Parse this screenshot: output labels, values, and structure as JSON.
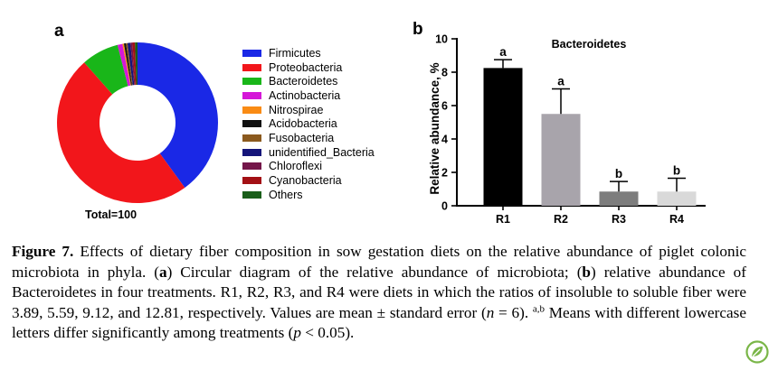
{
  "panel_labels": {
    "a": "a",
    "b": "b"
  },
  "chart_data": [
    {
      "type": "pie",
      "subtype": "donut",
      "total_label": "Total=100",
      "series": [
        {
          "name": "Firmicutes",
          "value": 40.0,
          "color": "#1a28e6"
        },
        {
          "name": "Proteobacteria",
          "value": 48.5,
          "color": "#f2161b"
        },
        {
          "name": "Bacteroidetes",
          "value": 7.5,
          "color": "#19b619"
        },
        {
          "name": "Actinobacteria",
          "value": 1.0,
          "color": "#d517d8"
        },
        {
          "name": "Nitrospirae",
          "value": 0.3,
          "color": "#f98b14"
        },
        {
          "name": "Acidobacteria",
          "value": 0.4,
          "color": "#111111"
        },
        {
          "name": "Fusobacteria",
          "value": 0.3,
          "color": "#8b5a1e"
        },
        {
          "name": "unidentified_Bacteria",
          "value": 0.6,
          "color": "#15157a"
        },
        {
          "name": "Chloroflexi",
          "value": 0.4,
          "color": "#74164a"
        },
        {
          "name": "Cyanobacteria",
          "value": 0.5,
          "color": "#a31015"
        },
        {
          "name": "Others",
          "value": 0.5,
          "color": "#1a5e1a"
        }
      ]
    },
    {
      "type": "bar",
      "title": "Bacteroidetes",
      "ylabel": "Relative abundance, %",
      "ylim": [
        0,
        10
      ],
      "yticks": [
        0,
        2,
        4,
        6,
        8,
        10
      ],
      "categories": [
        "R1",
        "R2",
        "R3",
        "R4"
      ],
      "values": [
        8.25,
        5.5,
        0.85,
        0.85
      ],
      "errors": [
        0.5,
        1.5,
        0.6,
        0.8
      ],
      "significance": [
        "a",
        "a",
        "b",
        "b"
      ],
      "colors": [
        "#000000",
        "#a8a4ab",
        "#7d7d7d",
        "#d9d9d9"
      ]
    }
  ],
  "caption": {
    "label": "Figure 7.",
    "part1": " Effects of dietary fiber composition in sow gestation diets on the relative abundance of piglet colonic microbiota in phyla. (",
    "a": "a",
    "part2": ") Circular diagram of the relative abundance of microbiota; (",
    "b": "b",
    "part3": ") relative abundance of Bacteroidetes in four treatments. R1, R2, R3, and R4 were diets in which the ratios of insoluble to soluble fiber were 3.89, 5.59, 9.12, and 12.81, respectively. Values are mean ± standard error (",
    "n": "n",
    "part4": " = 6). ",
    "sup": "a,b",
    "part5": " Means with different lowercase letters differ significantly among treatments (",
    "p": "p",
    "part6": " < 0.05)."
  },
  "logo": {
    "icon": "journal-leaf-logo-icon",
    "color": "#7ab648"
  }
}
